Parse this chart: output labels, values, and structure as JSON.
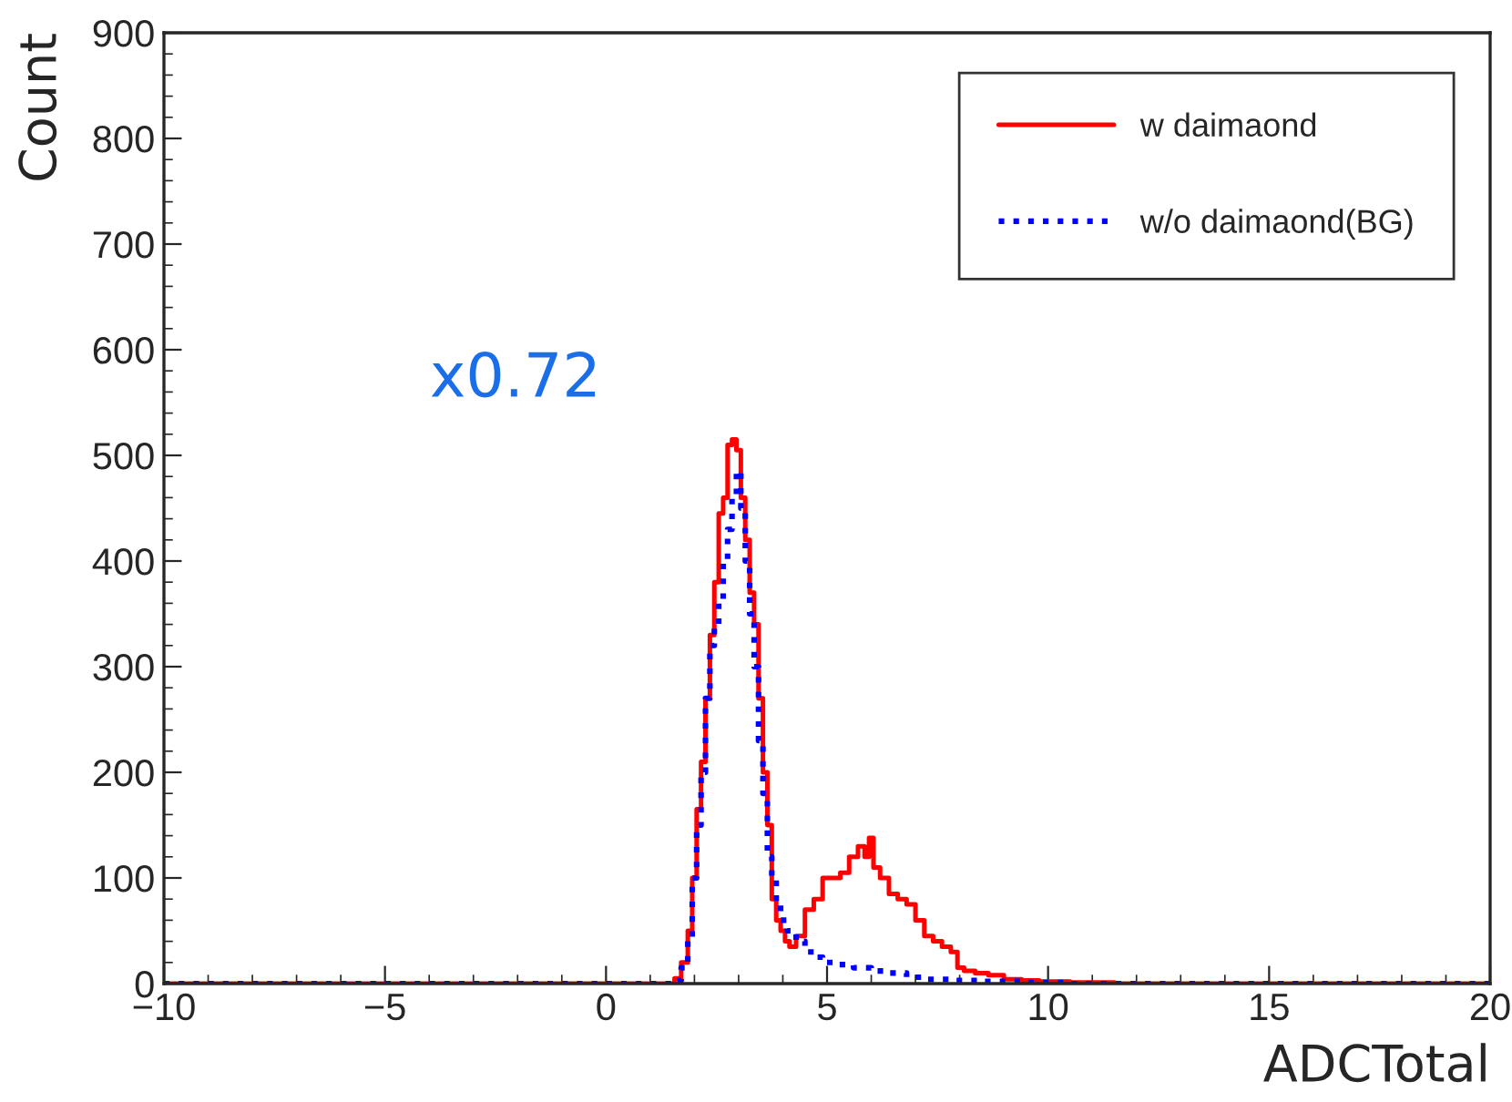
{
  "chart_data": {
    "type": "step",
    "xlabel": "ADCTotal",
    "ylabel": "Count",
    "xlim": [
      -10,
      20
    ],
    "xticks": [
      {
        "value": -10,
        "label": "−10"
      },
      {
        "value": -5,
        "label": "−5"
      },
      0,
      5,
      10,
      15,
      20
    ],
    "ylim": [
      0,
      900
    ],
    "yticks": [
      0,
      100,
      200,
      300,
      400,
      500,
      600,
      700,
      800,
      900
    ],
    "grid": false,
    "legend": "top right",
    "annotations": [
      "x0.72"
    ],
    "series": [
      {
        "name": "w daimaond",
        "color": "#ff0000",
        "line_style": "solid",
        "x": [
          -10,
          1.5,
          1.6,
          1.8,
          1.9,
          2.0,
          2.1,
          2.2,
          2.3,
          2.4,
          2.5,
          2.6,
          2.7,
          2.8,
          2.9,
          3.0,
          3.1,
          3.2,
          3.3,
          3.4,
          3.5,
          3.6,
          3.7,
          3.8,
          3.9,
          4.0,
          4.1,
          4.2,
          4.4,
          4.6,
          4.8,
          5.0,
          5.2,
          5.4,
          5.6,
          5.8,
          5.9,
          6.0,
          6.1,
          6.3,
          6.5,
          6.7,
          6.9,
          7.1,
          7.3,
          7.5,
          7.7,
          7.9,
          8.0,
          8.2,
          8.5,
          8.8,
          9.2,
          9.6,
          10,
          11,
          12,
          20
        ],
        "values": [
          0,
          0,
          5,
          20,
          50,
          100,
          165,
          210,
          270,
          330,
          380,
          445,
          460,
          510,
          515,
          505,
          460,
          420,
          370,
          340,
          270,
          200,
          150,
          80,
          60,
          50,
          40,
          35,
          45,
          70,
          80,
          100,
          100,
          105,
          120,
          130,
          120,
          138,
          110,
          100,
          85,
          80,
          75,
          60,
          45,
          40,
          35,
          30,
          15,
          12,
          10,
          8,
          4,
          3,
          2,
          1,
          0,
          0
        ]
      },
      {
        "name": "w/o daimaond(BG)",
        "color": "#0000ff",
        "line_style": "dotted",
        "x": [
          -10,
          1.5,
          1.6,
          1.8,
          1.9,
          2.0,
          2.1,
          2.2,
          2.3,
          2.4,
          2.5,
          2.6,
          2.7,
          2.8,
          2.9,
          3.0,
          3.1,
          3.2,
          3.3,
          3.4,
          3.5,
          3.6,
          3.7,
          3.8,
          3.9,
          4.0,
          4.2,
          4.4,
          4.6,
          4.8,
          5.0,
          5.4,
          5.8,
          6.2,
          6.6,
          7.0,
          7.5,
          8,
          9,
          10,
          11,
          20
        ],
        "values": [
          0,
          0,
          3,
          15,
          40,
          100,
          150,
          200,
          270,
          320,
          340,
          360,
          400,
          430,
          460,
          485,
          450,
          400,
          350,
          300,
          230,
          180,
          120,
          100,
          75,
          60,
          50,
          40,
          30,
          25,
          20,
          18,
          15,
          12,
          10,
          6,
          4,
          3,
          2,
          1,
          0,
          0
        ]
      }
    ]
  }
}
